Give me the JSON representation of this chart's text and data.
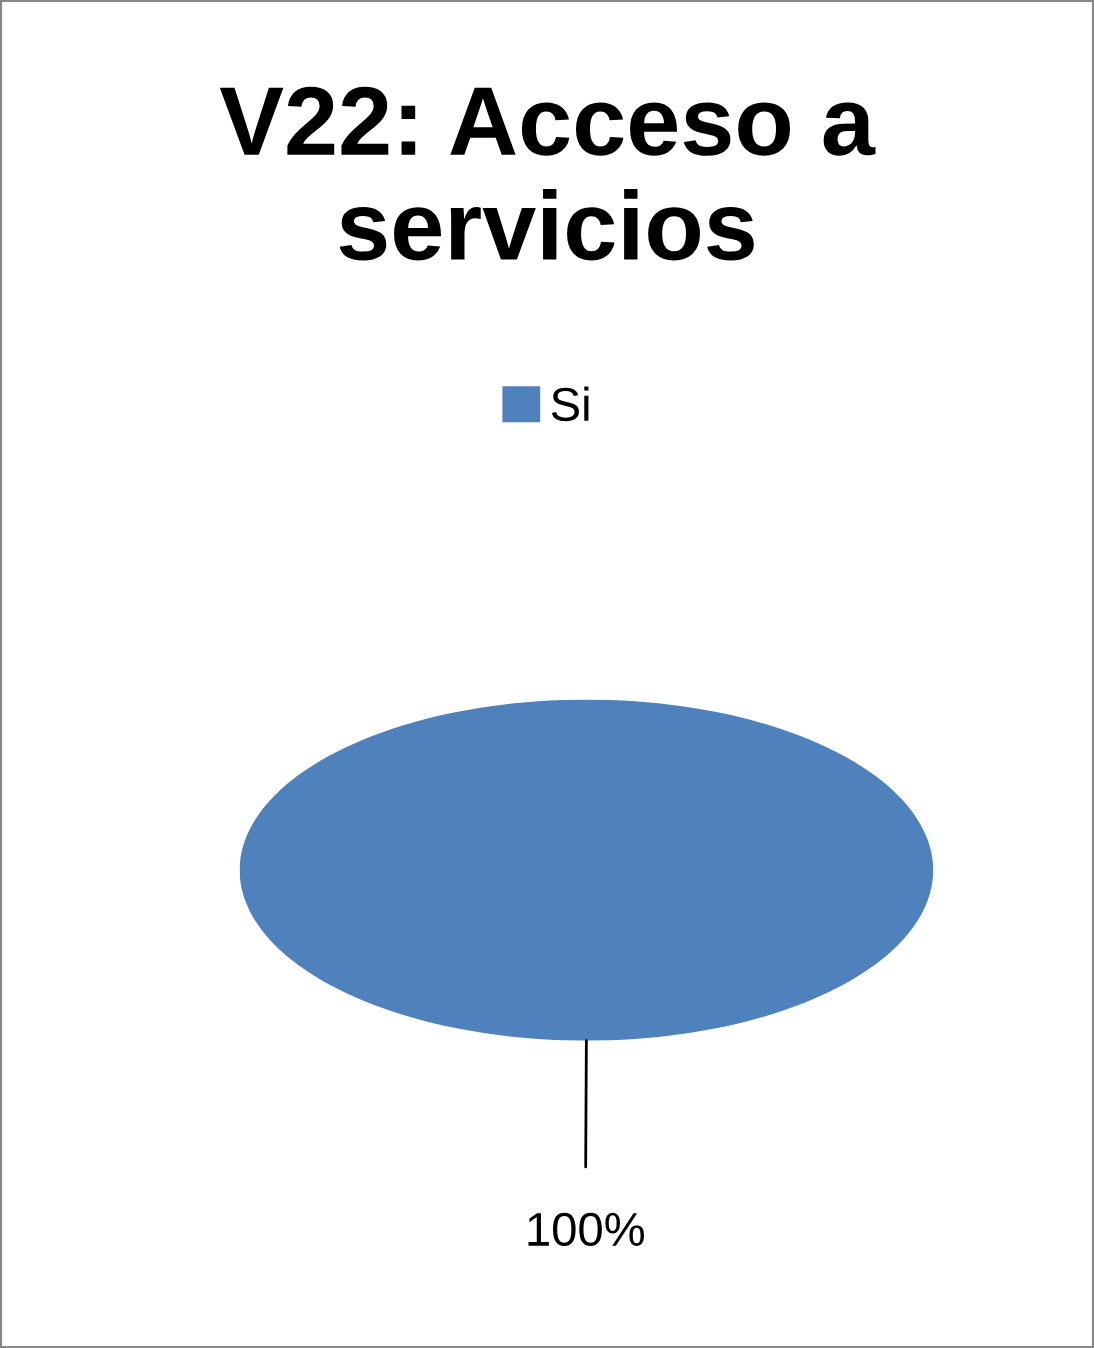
{
  "chart_data": {
    "type": "pie",
    "title": "V22: Acceso a servicios",
    "categories": [
      "Si"
    ],
    "values": [
      100
    ],
    "colors": [
      "#4f81bd"
    ],
    "value_labels": [
      "100%"
    ],
    "legend": "top"
  }
}
